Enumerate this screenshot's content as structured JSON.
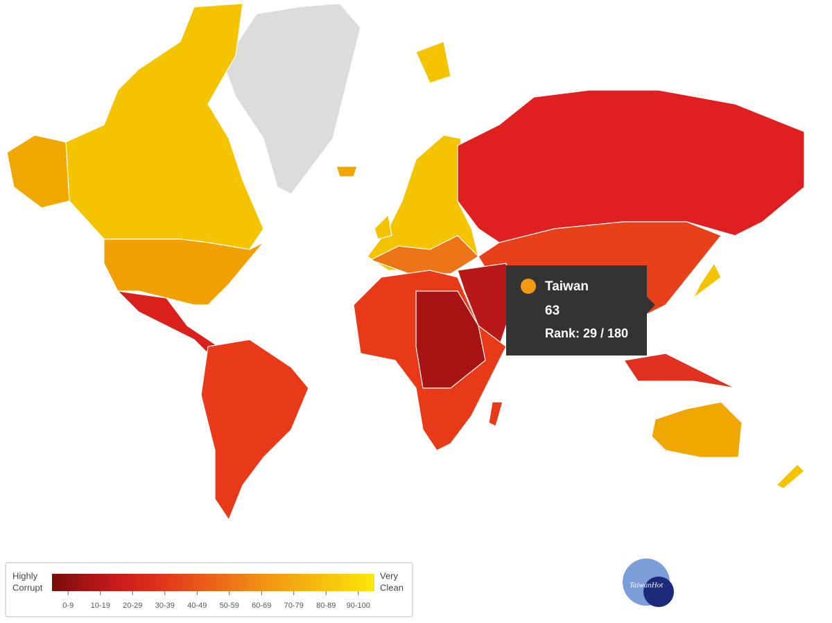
{
  "tooltip": {
    "country": "Taiwan",
    "score": 63,
    "rank": "Rank: 29 / 180",
    "color": "#f39a12"
  },
  "legend": {
    "low_label": [
      "Highly",
      "Corrupt"
    ],
    "high_label": [
      "Very",
      "Clean"
    ],
    "ranges": [
      "0-9",
      "10-19",
      "20-29",
      "30-39",
      "40-49",
      "50-59",
      "60-69",
      "70-79",
      "80-89",
      "90-100"
    ],
    "colors": [
      "#7a0b0b",
      "#a81414",
      "#cf1c1c",
      "#e0321c",
      "#e8541a",
      "#ee7418",
      "#f29514",
      "#f5b010",
      "#f8cb0c",
      "#fbe80a"
    ]
  },
  "watermark": "TaiwanHot"
}
